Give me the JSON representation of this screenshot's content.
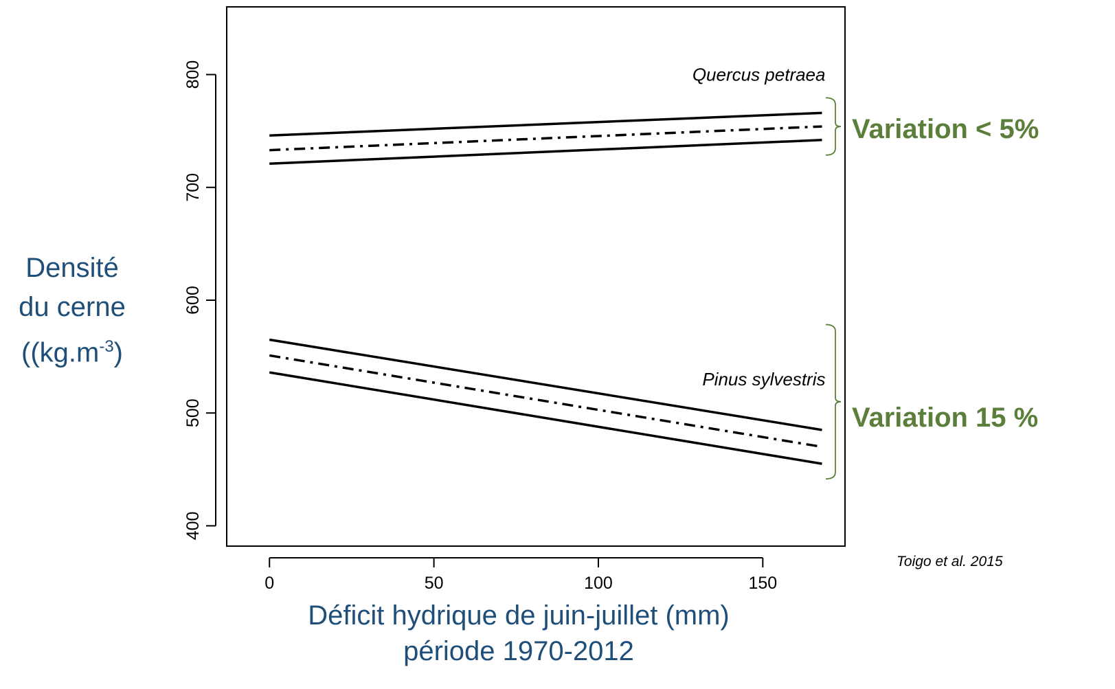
{
  "chart_data": {
    "type": "line",
    "xlim": [
      -13,
      175
    ],
    "ylim": [
      382,
      860
    ],
    "x_ticks": [
      0,
      50,
      100,
      150
    ],
    "y_ticks": [
      400,
      500,
      600,
      700,
      800
    ],
    "grid": false,
    "xlabel_lines": [
      "Déficit hydrique de juin-juillet (mm)",
      "période 1970-2012"
    ],
    "ylabel_lines": [
      "Densité",
      "du cerne",
      "(kg.m",
      "-3",
      ")"
    ],
    "series": [
      {
        "group": "Quercus petraea",
        "style": "solid",
        "x": [
          0,
          168
        ],
        "values": [
          746,
          766
        ]
      },
      {
        "group": "Quercus petraea",
        "style": "dashdot",
        "x": [
          0,
          168
        ],
        "values": [
          733,
          754
        ]
      },
      {
        "group": "Quercus petraea",
        "style": "solid",
        "x": [
          0,
          168
        ],
        "values": [
          721,
          742
        ]
      },
      {
        "group": "Pinus sylvestris",
        "style": "solid",
        "x": [
          0,
          168
        ],
        "values": [
          565,
          485
        ]
      },
      {
        "group": "Pinus sylvestris",
        "style": "dashdot",
        "x": [
          0,
          168
        ],
        "values": [
          551,
          470
        ]
      },
      {
        "group": "Pinus sylvestris",
        "style": "solid",
        "x": [
          0,
          168
        ],
        "values": [
          536,
          455
        ]
      }
    ],
    "annotations": [
      {
        "text": "Quercus petraea",
        "x": 168,
        "y": 800
      },
      {
        "text": "Pinus sylvestris",
        "x": 168,
        "y": 530
      }
    ],
    "brackets": [
      {
        "label": "Variation < 5%",
        "y_range": [
          742,
          766
        ]
      },
      {
        "label": "Variation 15 %",
        "y_range": [
          455,
          565
        ]
      }
    ]
  },
  "citation": "Toigo et al. 2015",
  "colors": {
    "axis_title": "#1f4e79",
    "variation": "#5b7f3a",
    "lines": "#000000"
  }
}
